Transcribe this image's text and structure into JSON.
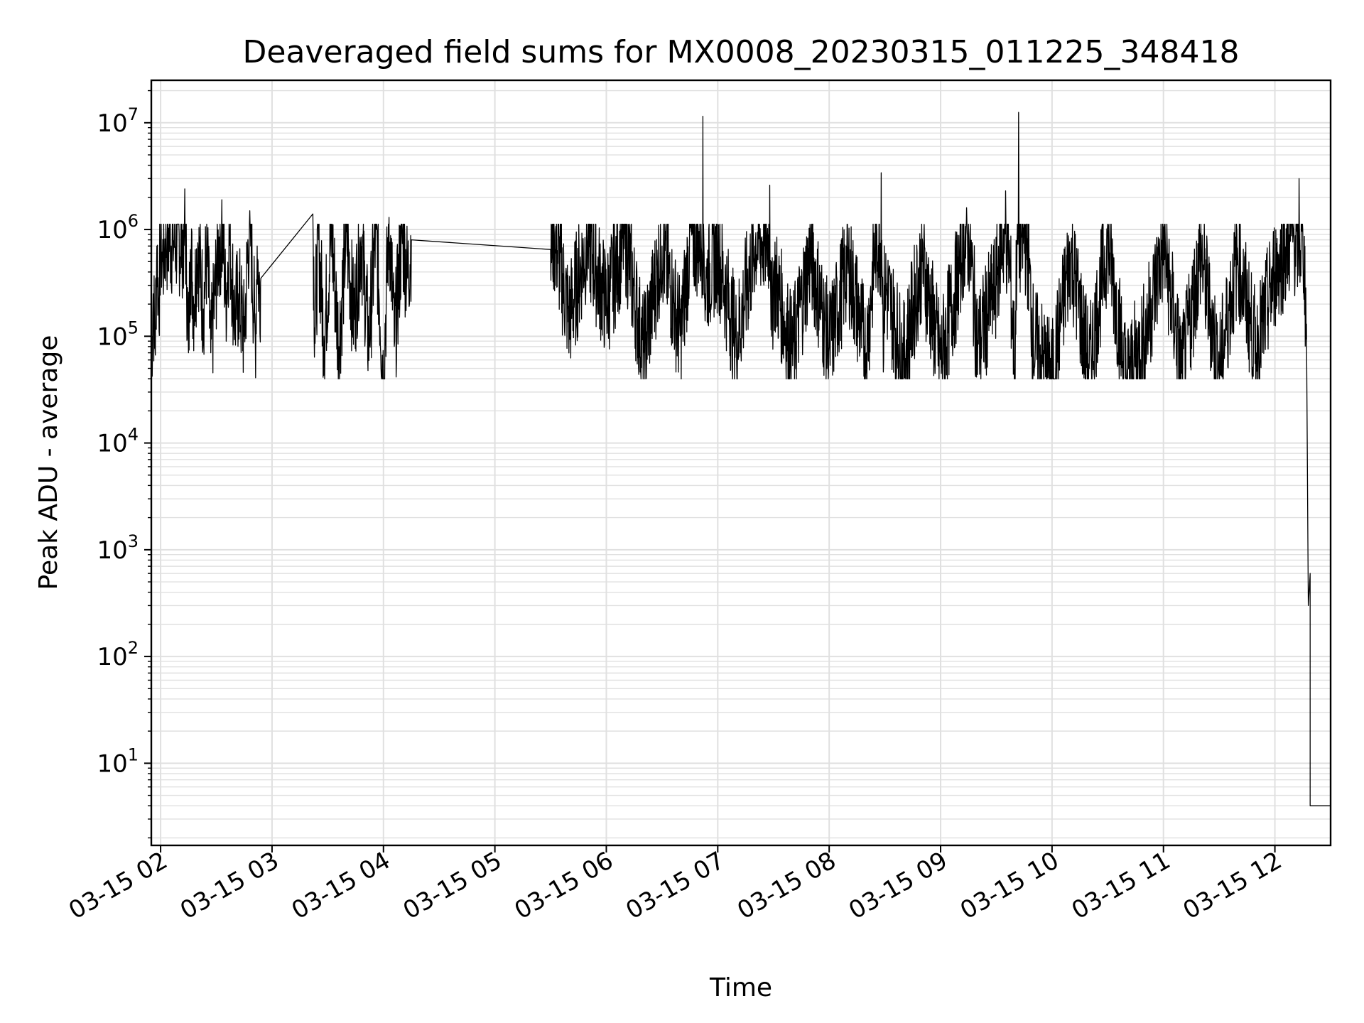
{
  "chart_data": {
    "type": "line",
    "title": "Deaveraged field sums for MX0008_20230315_011225_348418",
    "xlabel": "Time",
    "ylabel": "Peak ADU - average",
    "yscale": "log",
    "ylim": [
      1.7,
      25000000
    ],
    "xlim": [
      "2023-03-15 01:55",
      "2023-03-15 12:30"
    ],
    "x_ticks": [
      "03-15 02",
      "03-15 03",
      "03-15 04",
      "03-15 05",
      "03-15 06",
      "03-15 07",
      "03-15 08",
      "03-15 09",
      "03-15 10",
      "03-15 11",
      "03-15 12"
    ],
    "y_ticks": [
      {
        "base": "10",
        "exp": "1",
        "value": 10
      },
      {
        "base": "10",
        "exp": "2",
        "value": 100
      },
      {
        "base": "10",
        "exp": "3",
        "value": 1000
      },
      {
        "base": "10",
        "exp": "4",
        "value": 10000
      },
      {
        "base": "10",
        "exp": "5",
        "value": 100000
      },
      {
        "base": "10",
        "exp": "6",
        "value": 1000000
      },
      {
        "base": "10",
        "exp": "7",
        "value": 10000000
      }
    ],
    "grid": true,
    "line_color": "#000000",
    "grid_color": "#e0e0e0",
    "series": [
      {
        "x": [
          "2023-03-15 01:55",
          "2023-03-15 01:56",
          "2023-03-15 01:57",
          "2023-03-15 01:58",
          "2023-03-15 01:59",
          "2023-03-15 02:00",
          "2023-03-15 02:01",
          "2023-03-15 02:02",
          "2023-03-15 02:03",
          "2023-03-15 02:05",
          "2023-03-15 02:13",
          "2023-03-15 02:15",
          "2023-03-15 02:16",
          "2023-03-15 02:18",
          "2023-03-15 02:20",
          "2023-03-15 02:23",
          "2023-03-15 02:25",
          "2023-03-15 02:27",
          "2023-03-15 02:33",
          "2023-03-15 02:35",
          "2023-03-15 02:37",
          "2023-03-15 02:40",
          "2023-03-15 02:42",
          "2023-03-15 02:45",
          "2023-03-15 02:48",
          "2023-03-15 02:51",
          "2023-03-15 02:52",
          "2023-03-15 02:53",
          "2023-03-15 02:54",
          "2023-03-15 03:22",
          "2023-03-15 03:23",
          "2023-03-15 03:25",
          "2023-03-15 03:28",
          "2023-03-15 03:32",
          "2023-03-15 03:36",
          "2023-03-15 03:40",
          "2023-03-15 03:44",
          "2023-03-15 03:48",
          "2023-03-15 03:52",
          "2023-03-15 03:56",
          "2023-03-15 04:00",
          "2023-03-15 04:03",
          "2023-03-15 04:06",
          "2023-03-15 04:10",
          "2023-03-15 04:13",
          "2023-03-15 04:15",
          "2023-03-15 05:30",
          "2023-03-15 05:32",
          "2023-03-15 05:40",
          "2023-03-15 05:50",
          "2023-03-15 06:00",
          "2023-03-15 06:10",
          "2023-03-15 06:20",
          "2023-03-15 06:30",
          "2023-03-15 06:40",
          "2023-03-15 06:52",
          "2023-03-15 06:53",
          "2023-03-15 06:54",
          "2023-03-15 07:00",
          "2023-03-15 07:10",
          "2023-03-15 07:20",
          "2023-03-15 07:28",
          "2023-03-15 07:29",
          "2023-03-15 07:30",
          "2023-03-15 07:40",
          "2023-03-15 07:50",
          "2023-03-15 08:00",
          "2023-03-15 08:10",
          "2023-03-15 08:20",
          "2023-03-15 08:28",
          "2023-03-15 08:29",
          "2023-03-15 08:30",
          "2023-03-15 08:40",
          "2023-03-15 08:50",
          "2023-03-15 09:00",
          "2023-03-15 09:10",
          "2023-03-15 09:14",
          "2023-03-15 09:20",
          "2023-03-15 09:30",
          "2023-03-15 09:35",
          "2023-03-15 09:40",
          "2023-03-15 09:42",
          "2023-03-15 09:50",
          "2023-03-15 10:00",
          "2023-03-15 10:10",
          "2023-03-15 10:20",
          "2023-03-15 10:30",
          "2023-03-15 10:40",
          "2023-03-15 10:50",
          "2023-03-15 11:00",
          "2023-03-15 11:10",
          "2023-03-15 11:20",
          "2023-03-15 11:30",
          "2023-03-15 11:40",
          "2023-03-15 11:50",
          "2023-03-15 12:00",
          "2023-03-15 12:05",
          "2023-03-15 12:10",
          "2023-03-15 12:13",
          "2023-03-15 12:15",
          "2023-03-15 12:17",
          "2023-03-15 12:18",
          "2023-03-15 12:19",
          "2023-03-15 12:19",
          "2023-03-15 12:20",
          "2023-03-15 12:21",
          "2023-03-15 12:30"
        ],
        "y": [
          50000,
          250000,
          80000,
          700000,
          200000,
          800000,
          500000,
          650000,
          900000,
          1000000,
          2400000,
          70000,
          650000,
          200000,
          750000,
          180000,
          650000,
          70000,
          1900000,
          200000,
          900000,
          150000,
          250000,
          100000,
          1500000,
          90000,
          700000,
          250000,
          350000,
          1400000,
          120000,
          800000,
          100000,
          900000,
          80000,
          950000,
          150000,
          850000,
          90000,
          1000000,
          40000,
          1300000,
          90000,
          900000,
          350000,
          800000,
          650000,
          900000,
          150000,
          800000,
          200000,
          900000,
          70000,
          700000,
          100000,
          11500000,
          250000,
          350000,
          600000,
          90000,
          700000,
          2600000,
          100000,
          400000,
          70000,
          600000,
          80000,
          500000,
          70000,
          3400000,
          120000,
          300000,
          60000,
          500000,
          60000,
          400000,
          1600000,
          80000,
          300000,
          2300000,
          50000,
          12500000,
          90000,
          40000,
          600000,
          50000,
          800000,
          40000,
          100000,
          700000,
          45000,
          600000,
          50000,
          550000,
          70000,
          400000,
          600000,
          1000000,
          3000000,
          1000000,
          130000,
          300,
          600,
          4,
          4,
          4,
          4
        ]
      }
    ]
  }
}
